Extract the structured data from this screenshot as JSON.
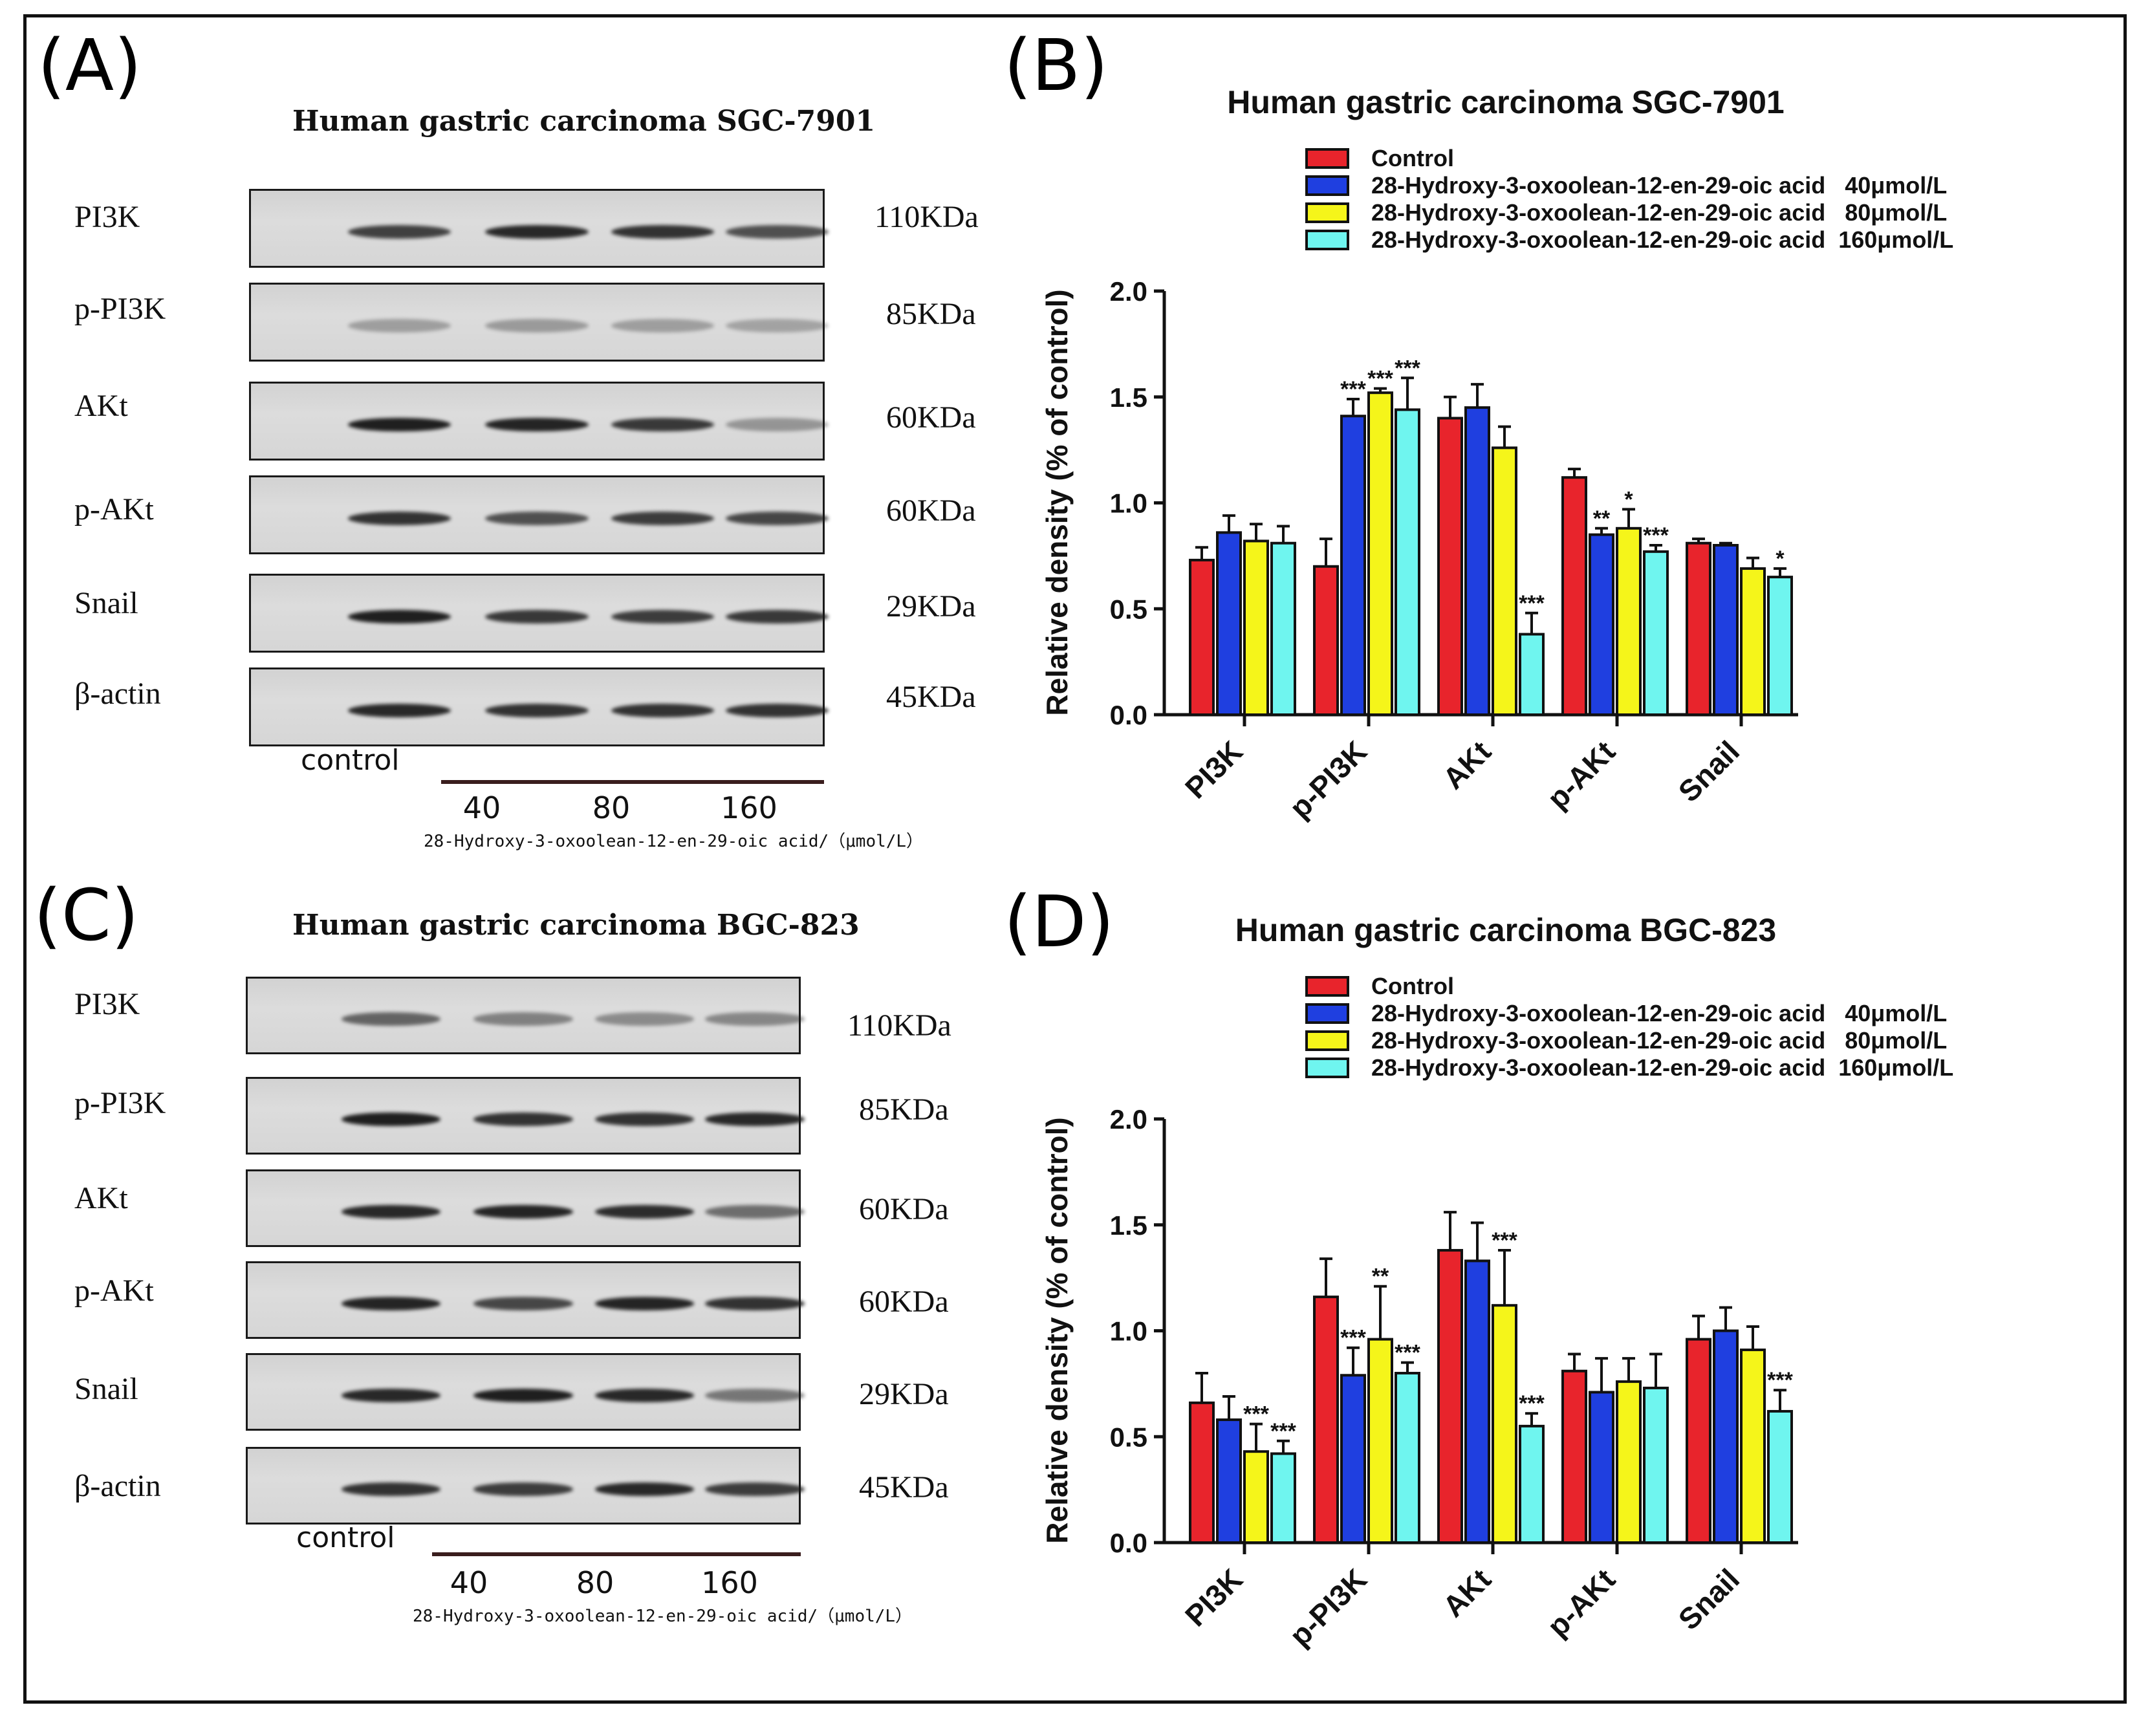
{
  "panel_letters": {
    "a": "(A)",
    "b": "(B)",
    "c": "(C)",
    "d": "(D)"
  },
  "colors": {
    "control": "#e8242c",
    "dose40": "#1f3fe0",
    "dose80": "#f5f51a",
    "dose160": "#6ff5ef"
  },
  "blot_a": {
    "title": "Human gastric carcinoma SGC-7901",
    "rows": [
      {
        "label": "PI3K",
        "size": "110KDa",
        "intensities": [
          0.03,
          0.78,
          0.9,
          0.85,
          0.7
        ]
      },
      {
        "label": "p-PI3K",
        "size": "85KDa",
        "intensities": [
          0.0,
          0.3,
          0.32,
          0.3,
          0.28
        ]
      },
      {
        "label": "AKt",
        "size": "60KDa",
        "intensities": [
          0.02,
          0.95,
          0.92,
          0.82,
          0.35
        ]
      },
      {
        "label": "p-AKt",
        "size": "60KDa",
        "intensities": [
          0.02,
          0.85,
          0.7,
          0.8,
          0.75
        ]
      },
      {
        "label": "Snail",
        "size": "29KDa",
        "intensities": [
          0.02,
          0.95,
          0.82,
          0.8,
          0.82
        ]
      },
      {
        "label": "β-actin",
        "size": "45KDa",
        "intensities": [
          0.02,
          0.9,
          0.85,
          0.85,
          0.85
        ]
      }
    ],
    "control_label": "control",
    "doses": [
      "40",
      "80",
      "160"
    ],
    "dose_caption": "28-Hydroxy-3-oxoolean-12-en-29-oic acid/（μmol/L）"
  },
  "blot_c": {
    "title": "Human gastric carcinoma BGC-823",
    "rows": [
      {
        "label": "PI3K",
        "size": "110KDa",
        "intensities": [
          0.03,
          0.6,
          0.45,
          0.4,
          0.42
        ]
      },
      {
        "label": "p-PI3K",
        "size": "85KDa",
        "intensities": [
          0.0,
          0.95,
          0.85,
          0.85,
          0.9
        ]
      },
      {
        "label": "AKt",
        "size": "60KDa",
        "intensities": [
          0.02,
          0.9,
          0.92,
          0.88,
          0.55
        ]
      },
      {
        "label": "p-AKt",
        "size": "60KDa",
        "intensities": [
          0.02,
          0.92,
          0.75,
          0.92,
          0.85
        ]
      },
      {
        "label": "Snail",
        "size": "29KDa",
        "intensities": [
          0.02,
          0.9,
          0.95,
          0.9,
          0.5
        ]
      },
      {
        "label": "β-actin",
        "size": "45KDa",
        "intensities": [
          0.02,
          0.85,
          0.8,
          0.9,
          0.8
        ]
      }
    ],
    "control_label": "control",
    "doses": [
      "40",
      "80",
      "160"
    ],
    "dose_caption": "28-Hydroxy-3-oxoolean-12-en-29-oic acid/（μmol/L）"
  },
  "chart_data": [
    {
      "type": "bar",
      "panel": "B",
      "title": "Human gastric carcinoma SGC-7901",
      "xlabel": "",
      "ylabel": "Relative density (% of control)",
      "ylim": [
        0,
        2.0
      ],
      "yticks": [
        "0.0",
        "0.5",
        "1.0",
        "1.5",
        "2.0"
      ],
      "categories": [
        "PI3K",
        "p-PI3K",
        "AKt",
        "p-AKt",
        "Snail"
      ],
      "series": [
        {
          "name": "Control",
          "values": [
            0.73,
            0.7,
            1.4,
            1.12,
            0.81
          ],
          "errors": [
            0.06,
            0.13,
            0.1,
            0.04,
            0.02
          ],
          "sig": [
            "",
            "",
            "",
            "",
            ""
          ]
        },
        {
          "name": "28-Hydroxy-3-oxoolean-12-en-29-oic acid   40μmol/L",
          "values": [
            0.86,
            1.41,
            1.45,
            0.85,
            0.8
          ],
          "errors": [
            0.08,
            0.08,
            0.11,
            0.03,
            0.01
          ],
          "sig": [
            "",
            "***",
            "",
            "**",
            ""
          ]
        },
        {
          "name": "28-Hydroxy-3-oxoolean-12-en-29-oic acid   80μmol/L",
          "values": [
            0.82,
            1.52,
            1.26,
            0.88,
            0.69
          ],
          "errors": [
            0.08,
            0.02,
            0.1,
            0.09,
            0.05
          ],
          "sig": [
            "",
            "***",
            "",
            "*",
            ""
          ]
        },
        {
          "name": "28-Hydroxy-3-oxoolean-12-en-29-oic acid  160μmol/L",
          "values": [
            0.81,
            1.44,
            0.38,
            0.77,
            0.65
          ],
          "errors": [
            0.08,
            0.15,
            0.1,
            0.03,
            0.04
          ],
          "sig": [
            "",
            "***",
            "***",
            "***",
            "*"
          ]
        }
      ]
    },
    {
      "type": "bar",
      "panel": "D",
      "title": "Human gastric carcinoma BGC-823",
      "xlabel": "",
      "ylabel": "Relative density (% of control)",
      "ylim": [
        0,
        2.0
      ],
      "yticks": [
        "0.0",
        "0.5",
        "1.0",
        "1.5",
        "2.0"
      ],
      "categories": [
        "PI3K",
        "p-PI3K",
        "AKt",
        "p-AKt",
        "Snail"
      ],
      "series": [
        {
          "name": "Control",
          "values": [
            0.66,
            1.16,
            1.38,
            0.81,
            0.96
          ],
          "errors": [
            0.14,
            0.18,
            0.18,
            0.08,
            0.11
          ],
          "sig": [
            "",
            "",
            "",
            "",
            ""
          ]
        },
        {
          "name": "28-Hydroxy-3-oxoolean-12-en-29-oic acid   40μmol/L",
          "values": [
            0.58,
            0.79,
            1.33,
            0.71,
            1.0
          ],
          "errors": [
            0.11,
            0.13,
            0.18,
            0.16,
            0.11
          ],
          "sig": [
            "",
            "***",
            "",
            "",
            ""
          ]
        },
        {
          "name": "28-Hydroxy-3-oxoolean-12-en-29-oic acid   80μmol/L",
          "values": [
            0.43,
            0.96,
            1.12,
            0.76,
            0.91
          ],
          "errors": [
            0.13,
            0.25,
            0.26,
            0.11,
            0.11
          ],
          "sig": [
            "***",
            "**",
            "***",
            "",
            ""
          ]
        },
        {
          "name": "28-Hydroxy-3-oxoolean-12-en-29-oic acid  160μmol/L",
          "values": [
            0.42,
            0.8,
            0.55,
            0.73,
            0.62
          ],
          "errors": [
            0.06,
            0.05,
            0.06,
            0.16,
            0.1
          ],
          "sig": [
            "***",
            "***",
            "***",
            "",
            "***"
          ]
        }
      ]
    }
  ]
}
